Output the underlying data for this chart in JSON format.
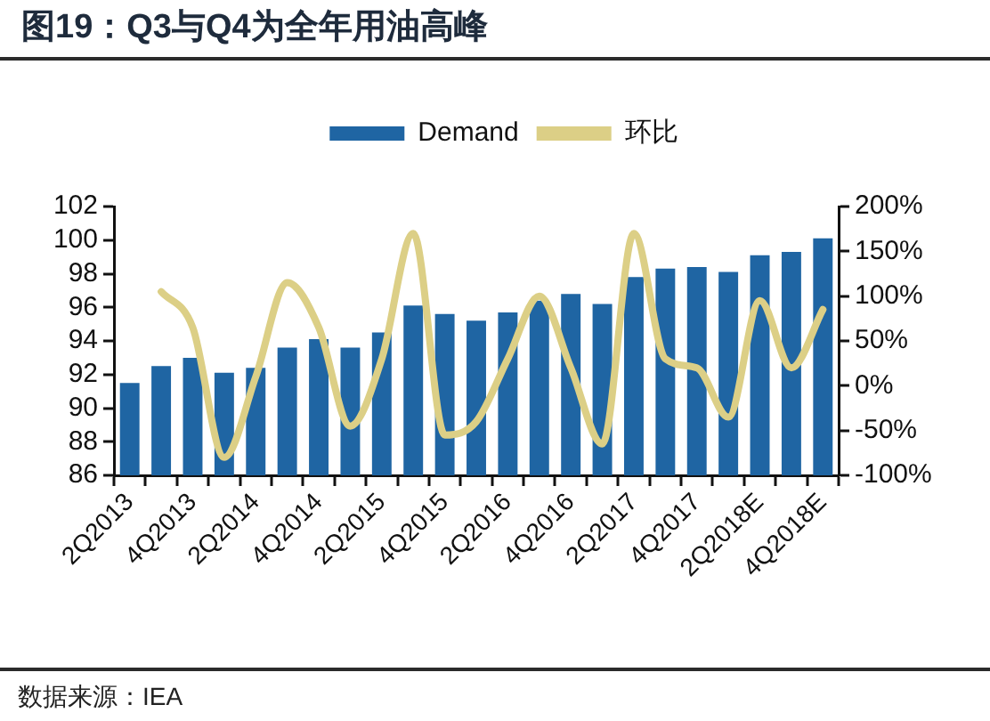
{
  "chart_data": {
    "type": "bar",
    "title": "图19：Q3与Q4为全年用油高峰",
    "categories": [
      "2Q2013",
      null,
      "4Q2013",
      null,
      "2Q2014",
      null,
      "4Q2014",
      null,
      "2Q2015",
      null,
      "4Q2015",
      null,
      "2Q2016",
      null,
      "4Q2016",
      null,
      "2Q2017",
      null,
      "4Q2017",
      null,
      "2Q2018E",
      null,
      "4Q2018E"
    ],
    "series": [
      {
        "name": "Demand",
        "color": "#1f65a3",
        "values": [
          91.5,
          92.5,
          93.0,
          92.1,
          92.4,
          93.6,
          94.1,
          93.6,
          94.5,
          96.1,
          95.6,
          95.2,
          95.7,
          96.4,
          96.8,
          96.2,
          97.8,
          98.3,
          98.4,
          98.1,
          99.1,
          99.3,
          100.1
        ]
      },
      {
        "name": "环比",
        "type": "line",
        "axis": "y2",
        "color": "#dccf86",
        "values": [
          null,
          105,
          65,
          -80,
          10,
          115,
          65,
          -45,
          30,
          170,
          -55,
          -40,
          30,
          100,
          20,
          -65,
          170,
          30,
          20,
          -35,
          95,
          20,
          85
        ]
      }
    ],
    "ylim": [
      86,
      102
    ],
    "yticks": [
      86,
      88,
      90,
      92,
      94,
      96,
      98,
      100,
      102
    ],
    "y2lim": [
      -100,
      200
    ],
    "y2ticks": [
      {
        "value": -100,
        "label": "-100%"
      },
      {
        "value": -50,
        "label": "-50%"
      },
      {
        "value": 0,
        "label": "0%"
      },
      {
        "value": 50,
        "label": "50%"
      },
      {
        "value": 100,
        "label": "100%"
      },
      {
        "value": 150,
        "label": "150%"
      },
      {
        "value": 200,
        "label": "200%"
      }
    ],
    "legend": "top",
    "grid": false,
    "marker": "none",
    "line_style": "solid",
    "annotations": [
      "数据来源：IEA"
    ]
  }
}
